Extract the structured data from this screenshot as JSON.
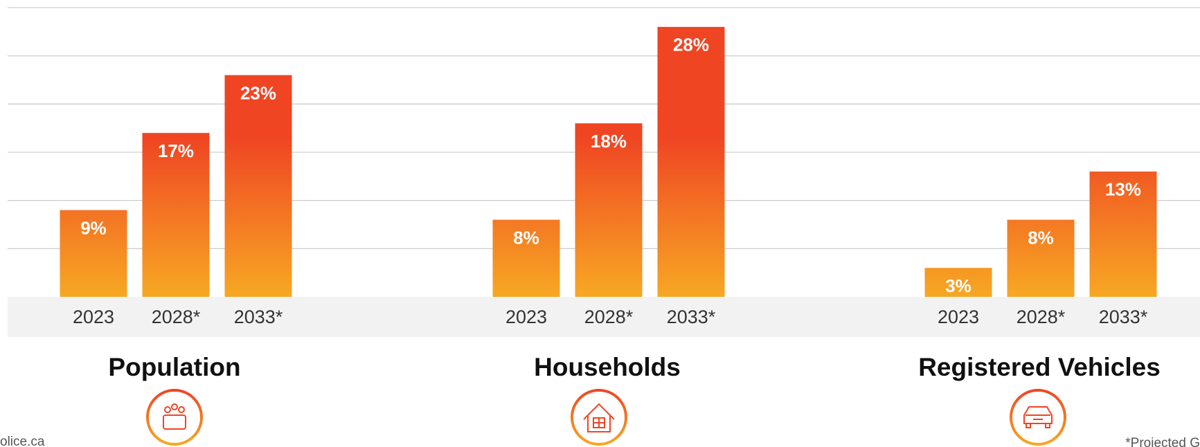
{
  "chart_data": [
    {
      "type": "bar",
      "title": "Population",
      "categories": [
        "2023",
        "2028*",
        "2033*"
      ],
      "values": [
        9,
        17,
        23
      ],
      "value_labels": [
        "9%",
        "17%",
        "23%"
      ],
      "ylim": [
        0,
        30
      ],
      "yticks": [
        0,
        5,
        10,
        15,
        20,
        25,
        30
      ],
      "grid": true,
      "colors": [
        "#f7a823",
        "#ef4523"
      ]
    },
    {
      "type": "bar",
      "title": "Households",
      "categories": [
        "2023",
        "2028*",
        "2033*"
      ],
      "values": [
        8,
        18,
        28
      ],
      "value_labels": [
        "8%",
        "18%",
        "28%"
      ],
      "ylim": [
        0,
        30
      ],
      "yticks": [
        0,
        5,
        10,
        15,
        20,
        25,
        30
      ],
      "grid": true,
      "colors": [
        "#f7a823",
        "#ef4523"
      ]
    },
    {
      "type": "bar",
      "title": "Registered Vehicles",
      "categories": [
        "2023",
        "2028*",
        "2033*"
      ],
      "values": [
        3,
        8,
        13
      ],
      "value_labels": [
        "3%",
        "8%",
        "13%"
      ],
      "ylim": [
        0,
        30
      ],
      "yticks": [
        0,
        5,
        10,
        15,
        20,
        25,
        30
      ],
      "grid": true,
      "colors": [
        "#f7a823",
        "#ef4523"
      ]
    }
  ],
  "footer": {
    "left": "olice.ca",
    "right": "*Projected G"
  }
}
